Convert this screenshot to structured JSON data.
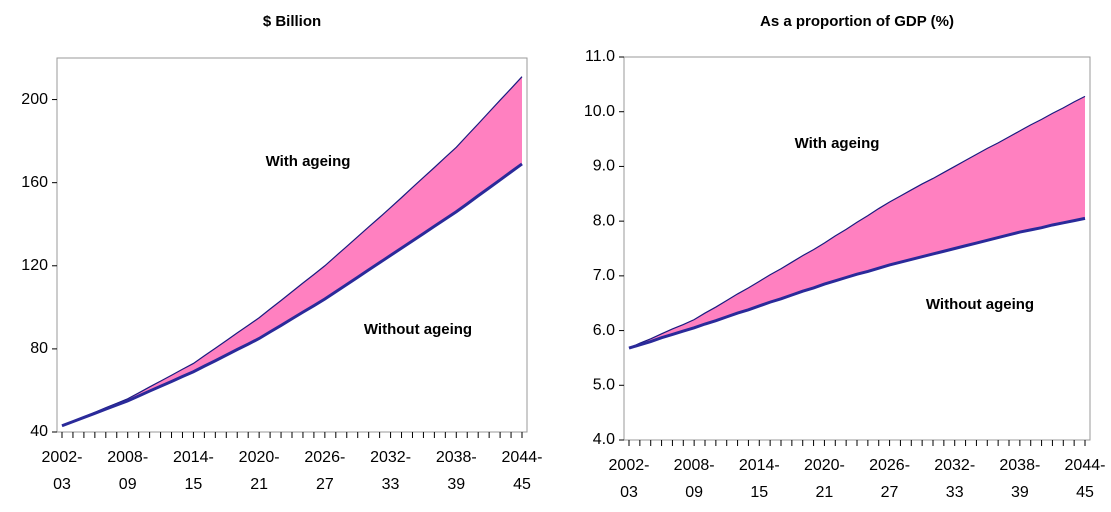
{
  "chart_data": [
    {
      "type": "area-band",
      "title": "$ Billion",
      "categories": [
        "2002-\n03",
        null,
        null,
        null,
        null,
        null,
        "2008-\n09",
        null,
        null,
        null,
        null,
        null,
        "2014-\n15",
        null,
        null,
        null,
        null,
        null,
        "2020-\n21",
        null,
        null,
        null,
        null,
        null,
        "2026-\n27",
        null,
        null,
        null,
        null,
        null,
        "2032-\n33",
        null,
        null,
        null,
        null,
        null,
        "2038-\n39",
        null,
        null,
        null,
        null,
        null,
        "2044-\n45"
      ],
      "series": [
        {
          "name": "With ageing",
          "color": "#1a1a80",
          "values": [
            43,
            45.2,
            47.3,
            49.5,
            51.7,
            53.8,
            56,
            58.8,
            61.7,
            64.5,
            67.3,
            70.2,
            73,
            76.7,
            80.3,
            84,
            87.7,
            91.3,
            95,
            99.2,
            103.3,
            107.5,
            111.7,
            115.8,
            120,
            124.7,
            129.3,
            134,
            138.7,
            143.3,
            148,
            152.8,
            157.7,
            162.5,
            167.3,
            172.2,
            177,
            182.7,
            188.3,
            194,
            199.7,
            205.3,
            211
          ]
        },
        {
          "name": "Without ageing",
          "color": "#2a2a9a",
          "values": [
            43,
            45,
            47,
            49,
            51,
            53,
            55,
            57.3,
            59.7,
            62,
            64.3,
            66.7,
            69,
            71.7,
            74.3,
            77,
            79.7,
            82.3,
            85,
            88.2,
            91.3,
            94.5,
            97.7,
            100.8,
            104,
            107.5,
            111,
            114.5,
            118,
            121.5,
            125,
            128.5,
            132,
            135.5,
            139,
            142.5,
            146,
            149.8,
            153.7,
            157.5,
            161.3,
            165.2,
            169
          ]
        }
      ],
      "fill_color": "#ff80c0",
      "ylim": [
        40,
        220
      ],
      "yticks": [
        40,
        80,
        120,
        160,
        200
      ]
    },
    {
      "type": "area-band",
      "title": "As a proportion of GDP (%)",
      "categories": [
        "2002-\n03",
        null,
        null,
        null,
        null,
        null,
        "2008-\n09",
        null,
        null,
        null,
        null,
        null,
        "2014-\n15",
        null,
        null,
        null,
        null,
        null,
        "2020-\n21",
        null,
        null,
        null,
        null,
        null,
        "2026-\n27",
        null,
        null,
        null,
        null,
        null,
        "2032-\n33",
        null,
        null,
        null,
        null,
        null,
        "2038-\n39",
        null,
        null,
        null,
        null,
        null,
        "2044-\n45"
      ],
      "series": [
        {
          "name": "With ageing",
          "color": "#1a1a80",
          "values": [
            5.68,
            5.77,
            5.85,
            5.94,
            6.03,
            6.11,
            6.2,
            6.32,
            6.43,
            6.55,
            6.67,
            6.78,
            6.9,
            7.02,
            7.13,
            7.25,
            7.37,
            7.48,
            7.6,
            7.73,
            7.85,
            7.98,
            8.1,
            8.23,
            8.35,
            8.46,
            8.57,
            8.68,
            8.78,
            8.89,
            9.0,
            9.11,
            9.22,
            9.33,
            9.43,
            9.54,
            9.65,
            9.76,
            9.86,
            9.97,
            10.07,
            10.18,
            10.28
          ]
        },
        {
          "name": "Without ageing",
          "color": "#2a2a9a",
          "values": [
            5.68,
            5.74,
            5.8,
            5.87,
            5.93,
            5.99,
            6.05,
            6.12,
            6.18,
            6.25,
            6.32,
            6.38,
            6.45,
            6.52,
            6.58,
            6.65,
            6.72,
            6.78,
            6.85,
            6.91,
            6.97,
            7.03,
            7.08,
            7.14,
            7.2,
            7.25,
            7.3,
            7.35,
            7.4,
            7.45,
            7.5,
            7.55,
            7.6,
            7.65,
            7.7,
            7.75,
            7.8,
            7.84,
            7.88,
            7.93,
            7.97,
            8.01,
            8.05
          ]
        }
      ],
      "fill_color": "#ff80c0",
      "ylim": [
        4,
        11
      ],
      "yticks": [
        {
          "value": 4,
          "label": "4.0"
        },
        {
          "value": 5,
          "label": "5.0"
        },
        {
          "value": 6,
          "label": "6.0"
        },
        {
          "value": 7,
          "label": "7.0"
        },
        {
          "value": 8,
          "label": "8.0"
        },
        {
          "value": 9,
          "label": "9.0"
        },
        {
          "value": 10,
          "label": "10.0"
        },
        {
          "value": 11,
          "label": "11.0"
        }
      ]
    }
  ]
}
